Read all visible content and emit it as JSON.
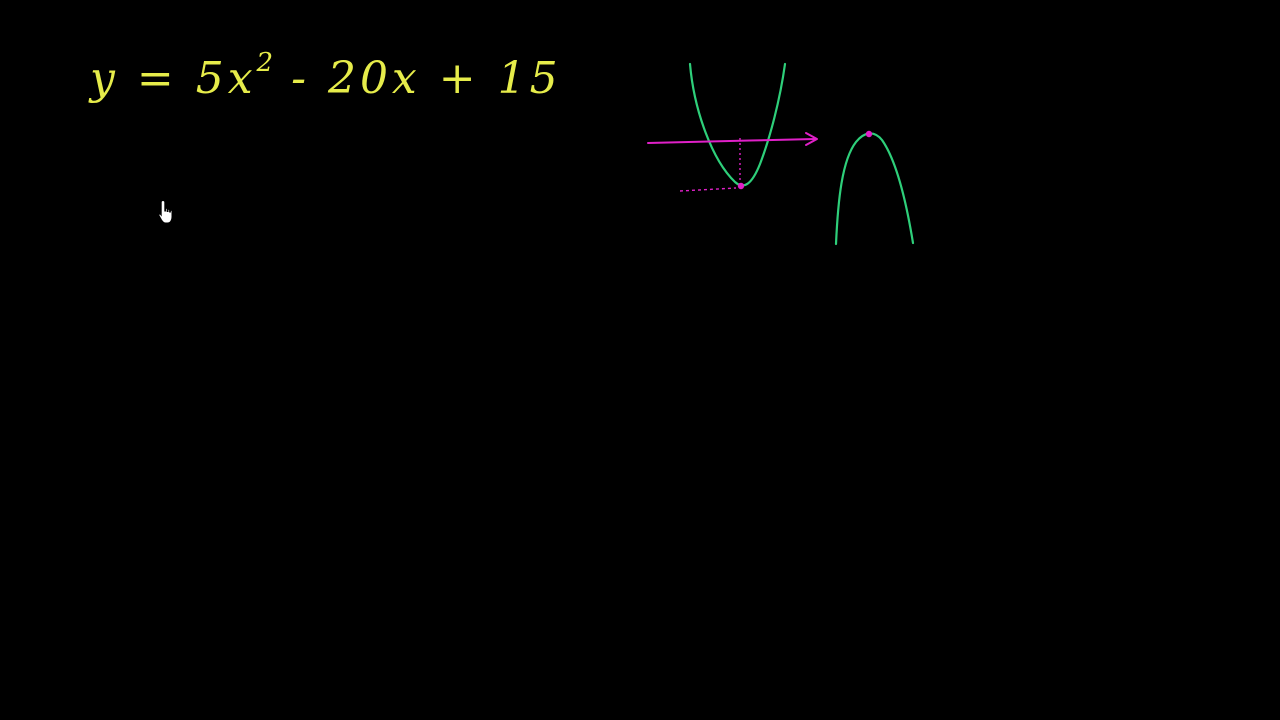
{
  "equation": {
    "lhs": "y",
    "equals": "=",
    "term1_coef": "5x",
    "term1_exp": "2",
    "term2": "- 20x",
    "term3": "+ 15"
  },
  "colors": {
    "background": "#000000",
    "equation": "#e6ec4a",
    "curve": "#2ecf7a",
    "accent": "#e020c8"
  },
  "icons": {
    "pointer": "hand-pointer-icon"
  }
}
